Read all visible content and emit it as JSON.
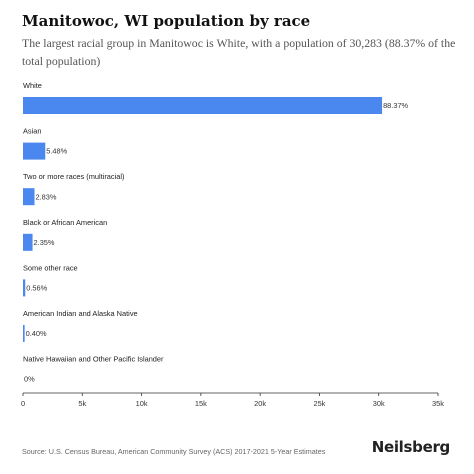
{
  "title": "Manitowoc, WI population by race",
  "subtitle": "The largest racial group in Manitowoc is White, with a population of 30,283 (88.37% of the total population)",
  "source": "Source: U.S. Census Bureau, American Community Survey (ACS) 2017-2021 5-Year Estimates",
  "brand": "Neilsberg",
  "colors": {
    "bar": "#4a87ee",
    "axis": "#333333",
    "text": "#222222"
  },
  "chart_data": {
    "type": "bar",
    "orientation": "horizontal",
    "categories": [
      "White",
      "Asian",
      "Two or more races (multiracial)",
      "Black or African American",
      "Some other race",
      "American Indian and Alaska Native",
      "Native Hawaiian and Other Pacific Islander"
    ],
    "values": [
      30283,
      1878,
      970,
      805,
      192,
      137,
      0
    ],
    "value_labels": [
      "88.37%",
      "5.48%",
      "2.83%",
      "2.35%",
      "0.56%",
      "0.40%",
      "0%"
    ],
    "xlim": [
      0,
      35000
    ],
    "xticks": [
      0,
      5000,
      10000,
      15000,
      20000,
      25000,
      30000,
      35000
    ],
    "xtick_labels": [
      "0",
      "5k",
      "10k",
      "15k",
      "20k",
      "25k",
      "30k",
      "35k"
    ],
    "grid": false,
    "legend": "none"
  }
}
